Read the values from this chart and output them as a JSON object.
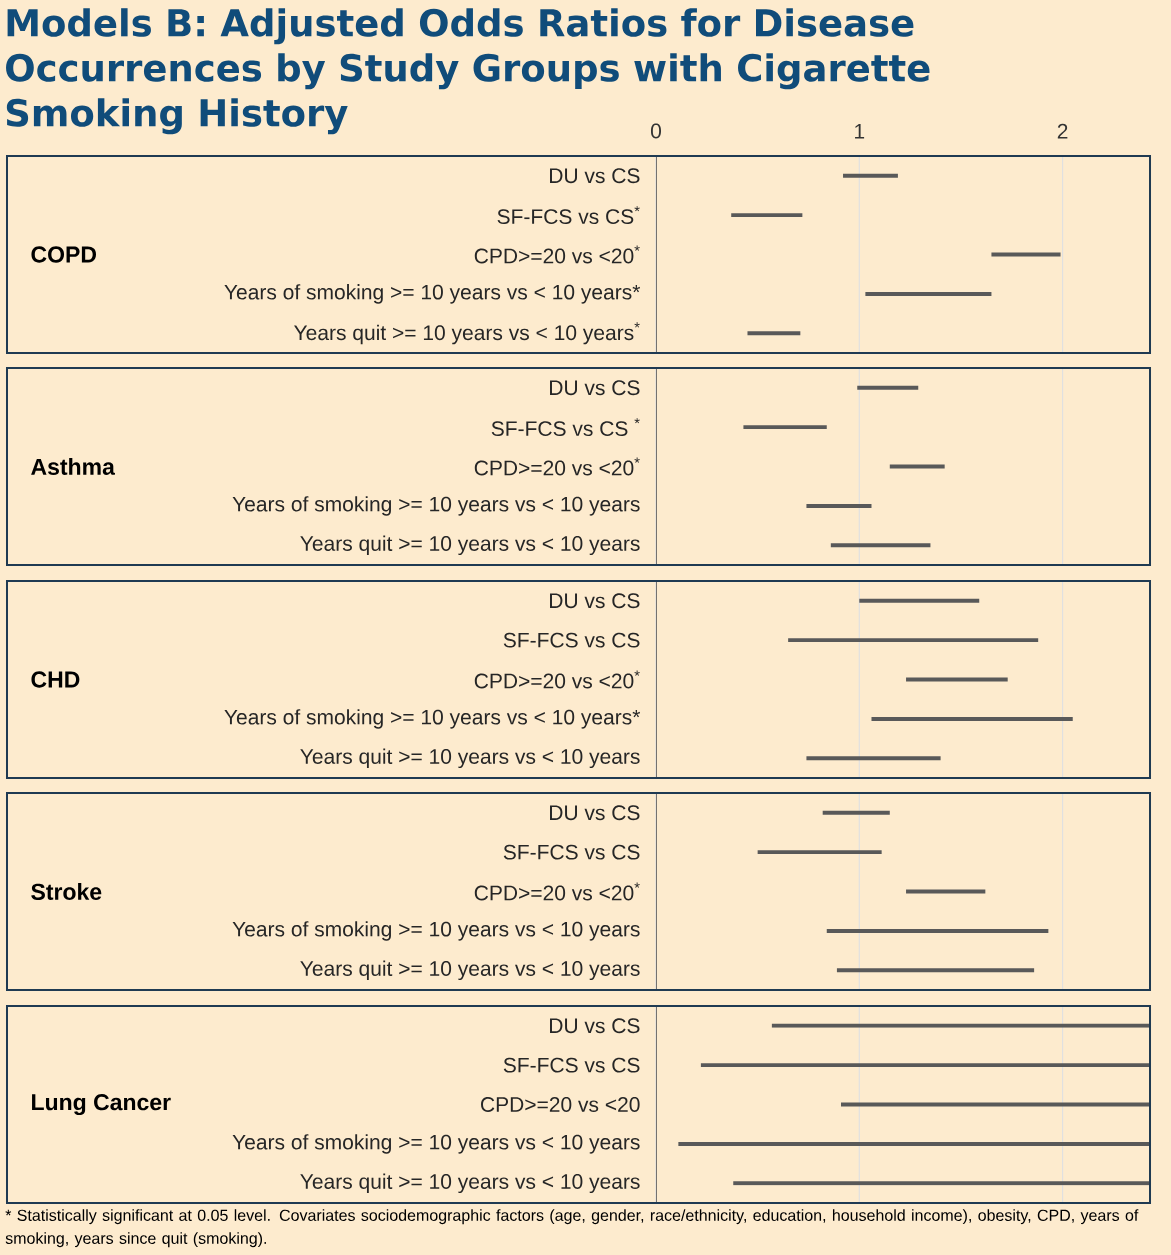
{
  "chart_data": [
    {
      "type": "bar",
      "orientation": "horizontal",
      "title": "Models B: Adjusted Odds Ratios for Disease Occurrences by Study Groups with Cigarette Smoking History",
      "ylabel": "COPD",
      "categories": [
        "DU vs CS",
        "SF-FCS vs CS$^{*}$",
        "CPD>=20 vs <20$^{*}$",
        "Years of smoking >= 10 years vs < 10 years*",
        "Years quit >= 10 years vs < 10 years$^{*}$"
      ],
      "base": [
        0.92,
        0.37,
        1.65,
        1.03,
        0.45
      ],
      "values": [
        0.27,
        0.35,
        0.34,
        0.62,
        0.26
      ],
      "color": "#595959",
      "xlim": [
        0,
        2.43
      ],
      "xticks": [
        0,
        1,
        2
      ],
      "grid": "x"
    },
    {
      "type": "bar",
      "orientation": "horizontal",
      "ylabel": "Asthma",
      "categories": [
        "DU vs CS",
        "SF-FCS vs CS $^{*}$",
        "CPD>=20 vs <20$^{*}$",
        "Years of smoking >= 10 years vs < 10 years",
        "Years quit >= 10 years vs < 10 years"
      ],
      "base": [
        0.99,
        0.43,
        1.15,
        0.74,
        0.86
      ],
      "values": [
        0.3,
        0.41,
        0.27,
        0.32,
        0.49
      ],
      "color": "#595959",
      "xlim": [
        0,
        2.43
      ],
      "xticks": [
        0,
        1,
        2
      ],
      "grid": "x",
      "tick_labels": "y"
    },
    {
      "type": "bar",
      "orientation": "horizontal",
      "ylabel": "CHD",
      "categories": [
        "DU vs CS",
        "SF-FCS vs CS",
        "CPD>=20 vs <20$^{*}$",
        "Years of smoking >= 10 years vs < 10 years*",
        "Years quit >= 10 years vs < 10 years"
      ],
      "base": [
        1.0,
        0.65,
        1.23,
        1.06,
        0.74
      ],
      "values": [
        0.59,
        1.23,
        0.5,
        0.99,
        0.66
      ],
      "color": "#595959",
      "xlim": [
        0,
        2.43
      ],
      "xticks": [
        0,
        1,
        2
      ],
      "grid": "x",
      "tick_labels": "y"
    },
    {
      "type": "bar",
      "orientation": "horizontal",
      "ylabel": "Stroke",
      "categories": [
        "DU vs CS",
        "SF-FCS vs CS",
        "CPD>=20 vs <20$^{*}$",
        "Years of smoking >= 10 years vs < 10 years",
        "Years quit >= 10 years vs < 10 years"
      ],
      "base": [
        0.82,
        0.5,
        1.23,
        0.84,
        0.89
      ],
      "values": [
        0.33,
        0.61,
        0.39,
        1.09,
        0.97
      ],
      "color": "#595959",
      "xlim": [
        0,
        2.43
      ],
      "xticks": [
        0,
        1,
        2
      ],
      "grid": "x",
      "tick_labels": "y"
    },
    {
      "type": "bar",
      "orientation": "horizontal",
      "ylabel": "Lung Cancer",
      "categories": [
        "DU vs CS",
        "SF-FCS vs CS",
        "CPD>=20 vs <20",
        "Years of smoking >= 10 years vs < 10 years",
        "Years quit >= 10 years vs < 10 years"
      ],
      "base": [
        0.57,
        0.22,
        0.91,
        0.11,
        0.38
      ],
      "values": [
        1.86,
        2.21,
        1.52,
        2.32,
        2.05
      ],
      "color": "#595959",
      "xlim": [
        0,
        2.43
      ],
      "xticks": [
        0,
        1,
        2
      ],
      "grid": "x",
      "tick_labels": "y",
      "annotations": [
        "* Statistically significant at 0.05 level. Covariates sociodemographic factors (age, gender, race/ethnicity, education, household income), obesity, CPD, years of smoking, years since quit (smoking)."
      ]
    }
  ]
}
